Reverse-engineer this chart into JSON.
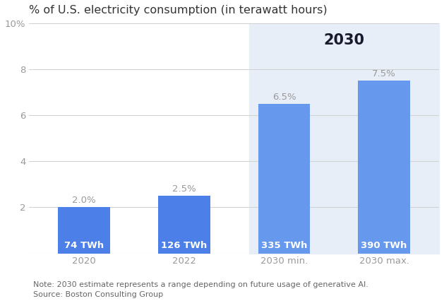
{
  "title": "% of U.S. electricity consumption (in terawatt hours)",
  "categories": [
    "2020",
    "2022",
    "2030 min.",
    "2030 max."
  ],
  "values": [
    2.0,
    2.5,
    6.5,
    7.5
  ],
  "twh_labels": [
    "74 TWh",
    "126 TWh",
    "335 TWh",
    "390 TWh"
  ],
  "pct_labels": [
    "2.0%",
    "2.5%",
    "6.5%",
    "7.5%"
  ],
  "bar_color": "#4d7fe8",
  "bar_color_2030": "#6699ee",
  "highlight_bg": "#e8eef8",
  "ylim": [
    0,
    10
  ],
  "yticks": [
    0,
    2,
    4,
    6,
    8,
    10
  ],
  "note_line1": "Note: 2030 estimate represents a range depending on future usage of generative AI.",
  "note_line2": "Source: Boston Consulting Group",
  "label_2030": "2030",
  "fig_bg": "#ffffff",
  "axes_bg": "#ffffff",
  "grid_color": "#d0d0d0",
  "title_color": "#333333",
  "tick_color": "#999999",
  "pct_label_color": "#999999",
  "twh_label_color": "#ffffff",
  "note_color": "#666666",
  "title_fontsize": 11.5,
  "bar_width": 0.52
}
